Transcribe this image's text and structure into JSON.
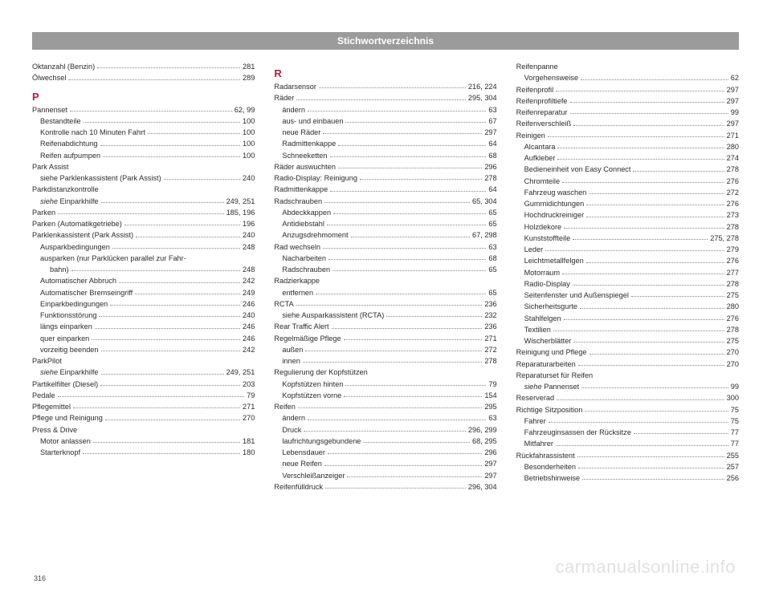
{
  "header": "Stichwortverzeichnis",
  "pageNumber": "316",
  "watermark": "carmanualsonline.info",
  "columns": [
    [
      {
        "t": "e",
        "label": "Oktanzahl (Benzin)",
        "page": "281"
      },
      {
        "t": "e",
        "label": "Ölwechsel",
        "page": "289"
      },
      {
        "t": "s",
        "label": "P"
      },
      {
        "t": "e",
        "label": "Pannenset",
        "page": "62, 99"
      },
      {
        "t": "e",
        "label": "Bestandteile",
        "page": "100",
        "i": 1
      },
      {
        "t": "e",
        "label": "Kontrolle nach 10 Minuten Fahrt",
        "page": "100",
        "i": 1
      },
      {
        "t": "e",
        "label": "Reifenabdichtung",
        "page": "100",
        "i": 1
      },
      {
        "t": "e",
        "label": "Reifen aufpumpen",
        "page": "100",
        "i": 1
      },
      {
        "t": "e",
        "label": "Park Assist"
      },
      {
        "t": "e",
        "label": "siehe Parklenkassistent (Park Assist)",
        "page": "240",
        "i": 1
      },
      {
        "t": "e",
        "label": "Parkdistanzkontrolle"
      },
      {
        "t": "e",
        "label": "siehe Einparkhilfe",
        "page": "249, 251",
        "i": 1,
        "ital": "siehe "
      },
      {
        "t": "e",
        "label": "Parken",
        "page": "185, 196"
      },
      {
        "t": "e",
        "label": "Parken (Automatikgetriebe)",
        "page": "196"
      },
      {
        "t": "e",
        "label": "Parklenkassistent (Park Assist)",
        "page": "240"
      },
      {
        "t": "e",
        "label": "Ausparkbedingungen",
        "page": "248",
        "i": 1
      },
      {
        "t": "e",
        "label": "ausparken (nur Parklücken parallel zur Fahr-",
        "i": 1
      },
      {
        "t": "e",
        "label": "bahn)",
        "page": "248",
        "i": 2
      },
      {
        "t": "e",
        "label": "Automatischer Abbruch",
        "page": "242",
        "i": 1
      },
      {
        "t": "e",
        "label": "Automatischer Bremseingriff",
        "page": "249",
        "i": 1
      },
      {
        "t": "e",
        "label": "Einparkbedingungen",
        "page": "246",
        "i": 1
      },
      {
        "t": "e",
        "label": "Funktionsstörung",
        "page": "240",
        "i": 1
      },
      {
        "t": "e",
        "label": "längs einparken",
        "page": "246",
        "i": 1
      },
      {
        "t": "e",
        "label": "quer einparken",
        "page": "246",
        "i": 1
      },
      {
        "t": "e",
        "label": "vorzeitig beenden",
        "page": "242",
        "i": 1
      },
      {
        "t": "e",
        "label": "ParkPilot"
      },
      {
        "t": "e",
        "label": "siehe Einparkhilfe",
        "page": "249, 251",
        "i": 1,
        "ital": "siehe "
      },
      {
        "t": "e",
        "label": "Partikelfilter (Diesel)",
        "page": "203"
      },
      {
        "t": "e",
        "label": "Pedale",
        "page": "79"
      },
      {
        "t": "e",
        "label": "Pflegemittel",
        "page": "271"
      },
      {
        "t": "e",
        "label": "Pflege und Reinigung",
        "page": "270"
      },
      {
        "t": "e",
        "label": "Press & Drive"
      },
      {
        "t": "e",
        "label": "Motor anlassen",
        "page": "181",
        "i": 1
      },
      {
        "t": "e",
        "label": "Starterknopf",
        "page": "180",
        "i": 1
      }
    ],
    [
      {
        "t": "s",
        "label": "R"
      },
      {
        "t": "e",
        "label": "Radarsensor",
        "page": "216, 224"
      },
      {
        "t": "e",
        "label": "Räder",
        "page": "295, 304"
      },
      {
        "t": "e",
        "label": "ändern",
        "page": "63",
        "i": 1
      },
      {
        "t": "e",
        "label": "aus- und einbauen",
        "page": "67",
        "i": 1
      },
      {
        "t": "e",
        "label": "neue Räder",
        "page": "297",
        "i": 1
      },
      {
        "t": "e",
        "label": "Radmittenkappe",
        "page": "64",
        "i": 1
      },
      {
        "t": "e",
        "label": "Schneeketten",
        "page": "68",
        "i": 1
      },
      {
        "t": "e",
        "label": "Räder auswuchten",
        "page": "296"
      },
      {
        "t": "e",
        "label": "Radio-Display: Reinigung",
        "page": "278"
      },
      {
        "t": "e",
        "label": "Radmittenkappe",
        "page": "64"
      },
      {
        "t": "e",
        "label": "Radschrauben",
        "page": "65, 304"
      },
      {
        "t": "e",
        "label": "Abdeckkappen",
        "page": "65",
        "i": 1
      },
      {
        "t": "e",
        "label": "Antidiebstahl",
        "page": "65",
        "i": 1
      },
      {
        "t": "e",
        "label": "Anzugsdrehmoment",
        "page": "67, 298",
        "i": 1
      },
      {
        "t": "e",
        "label": "Rad wechseln",
        "page": "63"
      },
      {
        "t": "e",
        "label": "Nacharbeiten",
        "page": "68",
        "i": 1
      },
      {
        "t": "e",
        "label": "Radschrauben",
        "page": "65",
        "i": 1
      },
      {
        "t": "e",
        "label": "Radzierkappe"
      },
      {
        "t": "e",
        "label": "entfernen",
        "page": "65",
        "i": 1
      },
      {
        "t": "e",
        "label": "RCTA",
        "page": "236"
      },
      {
        "t": "e",
        "label": "siehe Ausparkassistent (RCTA)",
        "page": "232",
        "i": 1
      },
      {
        "t": "e",
        "label": "Rear Traffic Alert",
        "page": "236"
      },
      {
        "t": "e",
        "label": "Regelmäßige Pflege",
        "page": "271"
      },
      {
        "t": "e",
        "label": "außen",
        "page": "272",
        "i": 1
      },
      {
        "t": "e",
        "label": "innen",
        "page": "278",
        "i": 1
      },
      {
        "t": "e",
        "label": "Regulierung der Kopfstützen"
      },
      {
        "t": "e",
        "label": "Kopfstützen hinten",
        "page": "79",
        "i": 1
      },
      {
        "t": "e",
        "label": "Kopfstützen vorne",
        "page": "154",
        "i": 1
      },
      {
        "t": "e",
        "label": "Reifen",
        "page": "295"
      },
      {
        "t": "e",
        "label": "ändern",
        "page": "63",
        "i": 1
      },
      {
        "t": "e",
        "label": "Druck",
        "page": "296, 299",
        "i": 1
      },
      {
        "t": "e",
        "label": "laufrichtungsgebundene",
        "page": "68, 295",
        "i": 1
      },
      {
        "t": "e",
        "label": "Lebensdauer",
        "page": "296",
        "i": 1
      },
      {
        "t": "e",
        "label": "neue Reifen",
        "page": "297",
        "i": 1
      },
      {
        "t": "e",
        "label": "Verschleißanzeiger",
        "page": "297",
        "i": 1
      },
      {
        "t": "e",
        "label": "Reifenfülldruck",
        "page": "296, 304"
      }
    ],
    [
      {
        "t": "e",
        "label": "Reifenpanne"
      },
      {
        "t": "e",
        "label": "Vorgehensweise",
        "page": "62",
        "i": 1
      },
      {
        "t": "e",
        "label": "Reifenprofil",
        "page": "297"
      },
      {
        "t": "e",
        "label": "Reifenprofiltiefe",
        "page": "297"
      },
      {
        "t": "e",
        "label": "Reifenreparatur",
        "page": "99"
      },
      {
        "t": "e",
        "label": "Reifenverschleiß",
        "page": "297"
      },
      {
        "t": "e",
        "label": "Reinigen",
        "page": "271"
      },
      {
        "t": "e",
        "label": "Alcantara",
        "page": "280",
        "i": 1
      },
      {
        "t": "e",
        "label": "Aufkleber",
        "page": "274",
        "i": 1
      },
      {
        "t": "e",
        "label": "Bedieneinheit von Easy Connect",
        "page": "278",
        "i": 1
      },
      {
        "t": "e",
        "label": "Chromteile",
        "page": "276",
        "i": 1
      },
      {
        "t": "e",
        "label": "Fahrzeug waschen",
        "page": "272",
        "i": 1
      },
      {
        "t": "e",
        "label": "Gummidichtungen",
        "page": "276",
        "i": 1
      },
      {
        "t": "e",
        "label": "Hochdruckreiniger",
        "page": "273",
        "i": 1
      },
      {
        "t": "e",
        "label": "Holzdekore",
        "page": "278",
        "i": 1
      },
      {
        "t": "e",
        "label": "Kunststoffteile",
        "page": "275, 278",
        "i": 1
      },
      {
        "t": "e",
        "label": "Leder",
        "page": "279",
        "i": 1
      },
      {
        "t": "e",
        "label": "Leichtmetallfelgen",
        "page": "276",
        "i": 1
      },
      {
        "t": "e",
        "label": "Motorraum",
        "page": "277",
        "i": 1
      },
      {
        "t": "e",
        "label": "Radio-Display",
        "page": "278",
        "i": 1
      },
      {
        "t": "e",
        "label": "Seitenfenster und Außenspiegel",
        "page": "275",
        "i": 1
      },
      {
        "t": "e",
        "label": "Sicherheitsgurte",
        "page": "280",
        "i": 1
      },
      {
        "t": "e",
        "label": "Stahlfelgen",
        "page": "276",
        "i": 1
      },
      {
        "t": "e",
        "label": "Textilien",
        "page": "278",
        "i": 1
      },
      {
        "t": "e",
        "label": "Wischerblätter",
        "page": "275",
        "i": 1
      },
      {
        "t": "e",
        "label": "Reinigung und Pflege",
        "page": "270"
      },
      {
        "t": "e",
        "label": "Reparaturarbeiten",
        "page": "270"
      },
      {
        "t": "e",
        "label": "Reparaturset für Reifen"
      },
      {
        "t": "e",
        "label": "siehe Pannenset",
        "page": "99",
        "i": 1,
        "ital": "siehe "
      },
      {
        "t": "e",
        "label": "Reserverad",
        "page": "300"
      },
      {
        "t": "e",
        "label": "Richtige Sitzposition",
        "page": "75"
      },
      {
        "t": "e",
        "label": "Fahrer",
        "page": "75",
        "i": 1
      },
      {
        "t": "e",
        "label": "Fahrzeuginsassen der Rücksitze",
        "page": "77",
        "i": 1
      },
      {
        "t": "e",
        "label": "Mitfahrer",
        "page": "77",
        "i": 1
      },
      {
        "t": "e",
        "label": "Rückfahrassistent",
        "page": "255"
      },
      {
        "t": "e",
        "label": "Besonderheiten",
        "page": "257",
        "i": 1
      },
      {
        "t": "e",
        "label": "Betriebshinweise",
        "page": "256",
        "i": 1
      }
    ]
  ]
}
